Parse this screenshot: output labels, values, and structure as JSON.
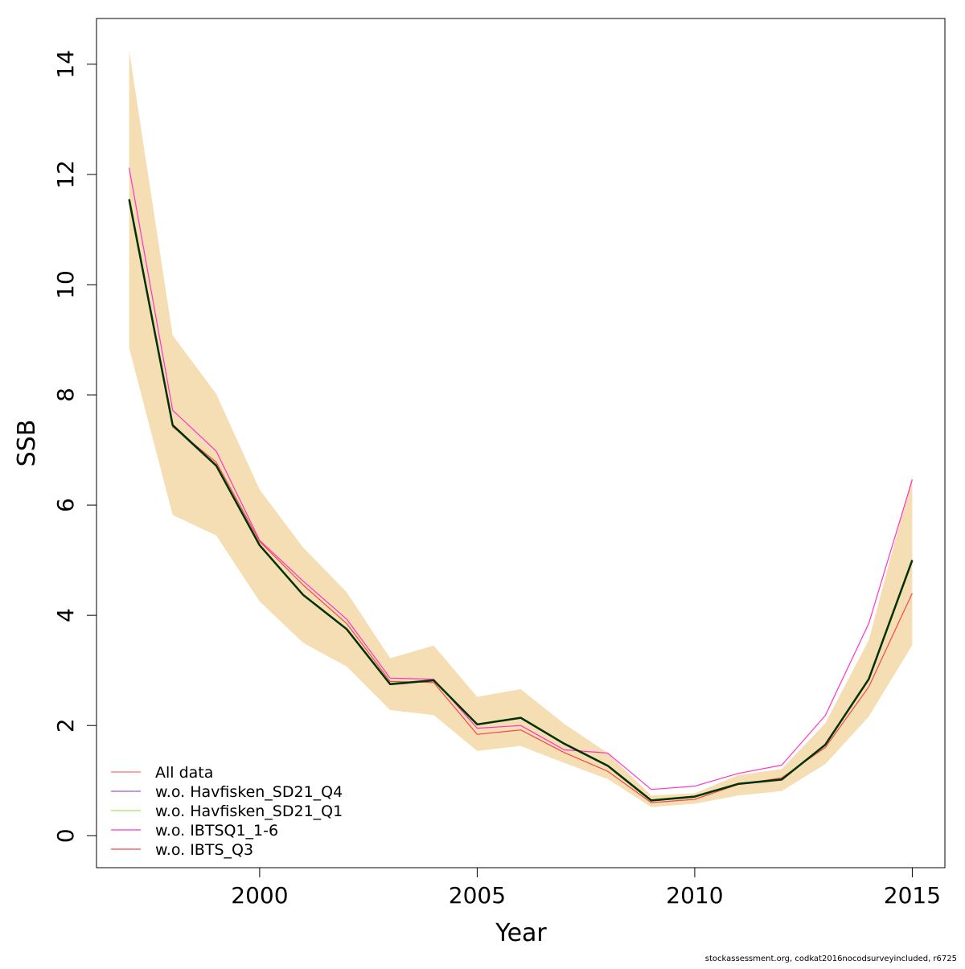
{
  "chart_data": {
    "type": "line",
    "title": "",
    "xlabel": "Year",
    "ylabel": "SSB",
    "xlim": [
      1996.25,
      2015.75
    ],
    "ylim": [
      -0.58,
      14.83
    ],
    "x_ticks": [
      2000,
      2005,
      2010,
      2015
    ],
    "y_ticks": [
      0,
      2,
      4,
      6,
      8,
      10,
      12,
      14
    ],
    "grid": false,
    "legend_position": "bottom-left",
    "x": [
      1997,
      1998,
      1999,
      2000,
      2001,
      2002,
      2003,
      2004,
      2005,
      2006,
      2007,
      2008,
      2009,
      2010,
      2011,
      2012,
      2013,
      2014,
      2015
    ],
    "confidence_band": {
      "color": "#F5DEB3",
      "upper": [
        14.25,
        9.08,
        8.02,
        6.28,
        5.23,
        4.42,
        3.22,
        3.45,
        2.52,
        2.66,
        2.03,
        1.5,
        0.73,
        0.77,
        1.1,
        1.21,
        2.04,
        3.55,
        6.53
      ],
      "lower": [
        8.85,
        5.82,
        5.45,
        4.25,
        3.5,
        3.07,
        2.28,
        2.19,
        1.54,
        1.63,
        1.32,
        1.03,
        0.52,
        0.58,
        0.73,
        0.81,
        1.3,
        2.16,
        3.46
      ]
    },
    "series": [
      {
        "name": "All data",
        "color": "#FF6B6B",
        "values": [
          11.55,
          7.45,
          6.72,
          5.27,
          4.37,
          3.75,
          2.75,
          2.82,
          2.02,
          2.14,
          1.67,
          1.27,
          0.64,
          0.71,
          0.94,
          1.02,
          1.65,
          2.84,
          5.0
        ]
      },
      {
        "name": "w.o. Havfisken_SD21_Q4",
        "color": "#9B59D0",
        "values": [
          11.53,
          7.43,
          6.7,
          5.26,
          4.36,
          3.74,
          2.74,
          2.81,
          2.01,
          2.13,
          1.66,
          1.26,
          0.63,
          0.7,
          0.93,
          1.01,
          1.64,
          2.83,
          4.98
        ]
      },
      {
        "name": "w.o. Havfisken_SD21_Q1",
        "color": "#A6E06A",
        "values": [
          11.56,
          7.46,
          6.73,
          5.28,
          4.38,
          3.76,
          2.76,
          2.83,
          2.03,
          2.15,
          1.68,
          1.28,
          0.65,
          0.72,
          0.95,
          1.03,
          1.66,
          2.85,
          5.01
        ]
      },
      {
        "name": "w.o. IBTSQ1_1-6",
        "color": "#FF33CC",
        "values": [
          12.12,
          7.72,
          6.98,
          5.36,
          4.62,
          3.93,
          2.86,
          2.84,
          1.95,
          2.0,
          1.56,
          1.5,
          0.84,
          0.9,
          1.13,
          1.28,
          2.18,
          3.85,
          6.46
        ]
      },
      {
        "name": "w.o. IBTS_Q3",
        "color": "#F04A4A",
        "values": [
          11.5,
          7.42,
          6.78,
          5.34,
          4.55,
          3.85,
          2.8,
          2.78,
          1.84,
          1.92,
          1.51,
          1.17,
          0.6,
          0.66,
          0.93,
          1.05,
          1.6,
          2.7,
          4.4
        ]
      },
      {
        "color": "#003300",
        "values": [
          11.55,
          7.45,
          6.72,
          5.27,
          4.37,
          3.75,
          2.75,
          2.82,
          2.02,
          2.14,
          1.67,
          1.27,
          0.64,
          0.71,
          0.94,
          1.02,
          1.65,
          2.84,
          5.0
        ]
      }
    ]
  },
  "footer": {
    "note": "stockassessment.org, codkat2016nocodsurveyincluded, r6725"
  }
}
